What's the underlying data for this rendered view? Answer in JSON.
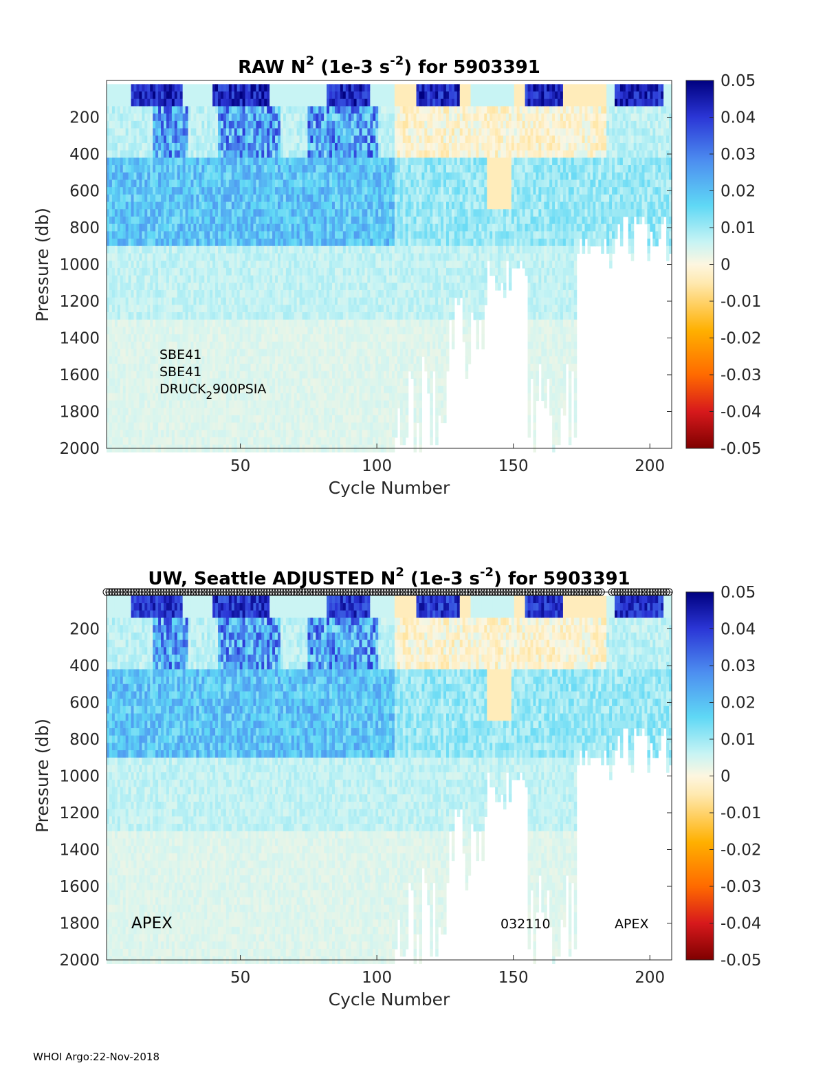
{
  "footer": "WHOI Argo:22-Nov-2018",
  "chart_data": [
    {
      "type": "heatmap",
      "title_prefix": "RAW N",
      "title_sup": "2",
      "title_mid": " (1e-3 s",
      "title_sup2": "-2",
      "title_suffix": ") for 5903391",
      "xlabel": "Cycle Number",
      "ylabel": "Pressure (db)",
      "xlim": [
        1,
        208
      ],
      "ylim": [
        2000,
        0
      ],
      "xticks": [
        "50",
        "100",
        "150",
        "200"
      ],
      "xtick_values": [
        50,
        100,
        150,
        200
      ],
      "yticks": [
        "200",
        "400",
        "600",
        "800",
        "1000",
        "1200",
        "1400",
        "1600",
        "1800",
        "2000"
      ],
      "ytick_values": [
        200,
        400,
        600,
        800,
        1000,
        1200,
        1400,
        1600,
        1800,
        2000
      ],
      "colorbar": {
        "ticks": [
          "0.05",
          "0.04",
          "0.03",
          "0.02",
          "0.01",
          "0",
          "-0.01",
          "-0.02",
          "-0.03",
          "-0.04",
          "-0.05"
        ],
        "range": [
          -0.05,
          0.05
        ],
        "colormap": [
          "#7f0000",
          "#d7191c",
          "#ff6a00",
          "#ffb000",
          "#ffe9b0",
          "#fdf6e0",
          "#c8f4f4",
          "#5fd8f5",
          "#4d8ff0",
          "#2b36d6",
          "#00007f"
        ]
      },
      "sensor_lines": [
        "SBE41",
        "SBE41",
        "DRUCK"
      ],
      "sensor_sub": "2",
      "sensor_tail": "900PSIA"
    },
    {
      "type": "heatmap",
      "title_prefix": "UW, Seattle  ADJUSTED N",
      "title_sup": "2",
      "title_mid": " (1e-3 s",
      "title_sup2": "-2",
      "title_suffix": ") for 5903391",
      "xlabel": "Cycle Number",
      "ylabel": "Pressure (db)",
      "xlim": [
        1,
        208
      ],
      "ylim": [
        2000,
        0
      ],
      "xticks": [
        "50",
        "100",
        "150",
        "200"
      ],
      "xtick_values": [
        50,
        100,
        150,
        200
      ],
      "yticks": [
        "200",
        "400",
        "600",
        "800",
        "1000",
        "1200",
        "1400",
        "1600",
        "1800",
        "2000"
      ],
      "ytick_values": [
        200,
        400,
        600,
        800,
        1000,
        1200,
        1400,
        1600,
        1800,
        2000
      ],
      "colorbar": {
        "ticks": [
          "0.05",
          "0.04",
          "0.03",
          "0.02",
          "0.01",
          "0",
          "-0.01",
          "-0.02",
          "-0.03",
          "-0.04",
          "-0.05"
        ],
        "range": [
          -0.05,
          0.05
        ]
      },
      "annotations": [
        "APEX",
        "032110",
        "APEX"
      ],
      "qc_marker_cycles_note": "open circles along top for adjusted profiles"
    }
  ]
}
